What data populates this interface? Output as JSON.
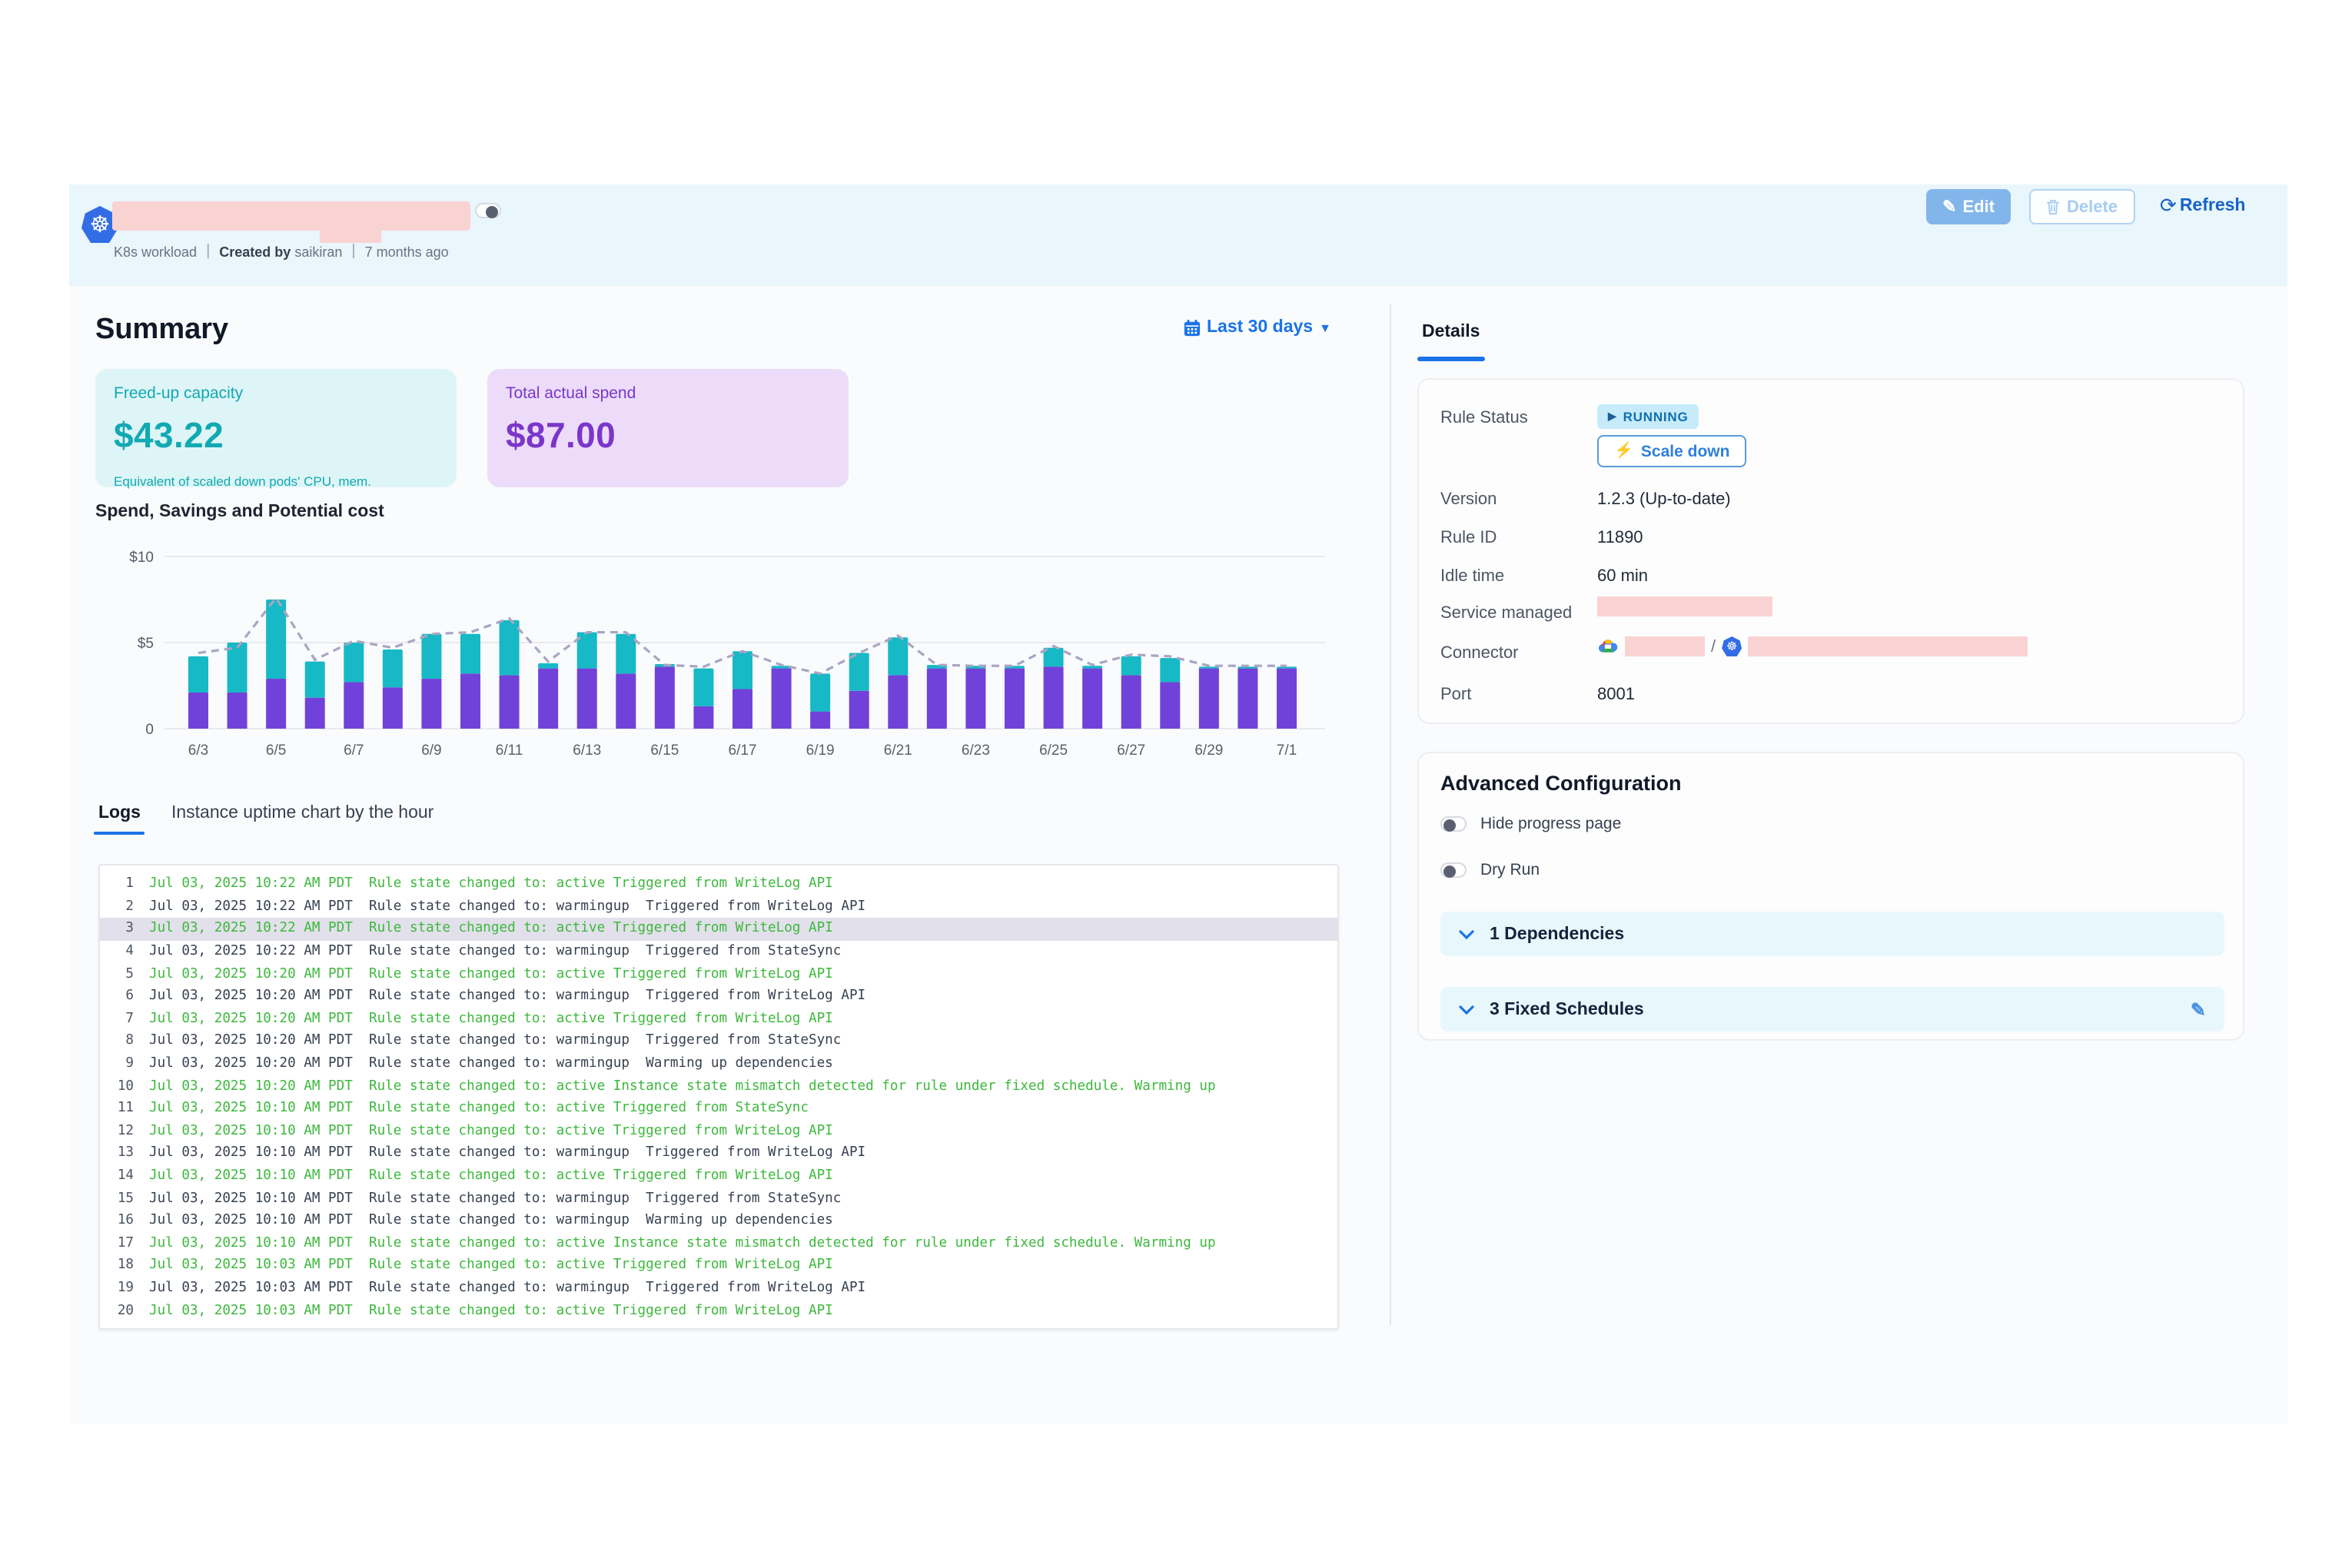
{
  "header": {
    "title_redacted": true,
    "type_label": "K8s workload",
    "created_by_label": "Created by",
    "created_by_value": "saikiran",
    "age": "7 months ago",
    "edit_label": "Edit",
    "delete_label": "Delete",
    "refresh_label": "Refresh",
    "workload_toggle_on": true
  },
  "summary": {
    "title": "Summary",
    "date_range": "Last 30 days",
    "cards": [
      {
        "label": "Freed-up capacity",
        "value": "$43.22",
        "caption": "Equivalent of scaled down pods' CPU, mem.",
        "accent": "#11a9b3",
        "bg": "#def5f7"
      },
      {
        "label": "Total actual spend",
        "value": "$87.00",
        "caption": "",
        "accent": "#7b36c9",
        "bg": "#ecdcfa"
      }
    ]
  },
  "chart_data": {
    "type": "bar",
    "stacked": true,
    "title": "Spend, Savings and Potential cost",
    "x": [
      "6/3",
      "6/4",
      "6/5",
      "6/6",
      "6/7",
      "6/8",
      "6/9",
      "6/10",
      "6/11",
      "6/12",
      "6/13",
      "6/14",
      "6/15",
      "6/16",
      "6/17",
      "6/18",
      "6/19",
      "6/20",
      "6/21",
      "6/22",
      "6/23",
      "6/24",
      "6/25",
      "6/26",
      "6/27",
      "6/28",
      "6/29",
      "6/30",
      "7/1"
    ],
    "x_tick_labels": [
      "6/3",
      "6/5",
      "6/7",
      "6/9",
      "6/11",
      "6/13",
      "6/15",
      "6/17",
      "6/19",
      "6/21",
      "6/23",
      "6/25",
      "6/27",
      "6/29",
      "7/1"
    ],
    "y_ticks": [
      "$10",
      "$5",
      "0"
    ],
    "ylim": [
      0,
      10
    ],
    "grid": true,
    "legend": "none",
    "series": [
      {
        "name": "Spend",
        "type": "bar",
        "color": "#7142d9",
        "values": [
          2.1,
          2.1,
          2.9,
          1.8,
          2.7,
          2.4,
          2.9,
          3.2,
          3.1,
          3.5,
          3.5,
          3.2,
          3.6,
          1.3,
          2.3,
          3.5,
          1.0,
          2.2,
          3.1,
          3.5,
          3.5,
          3.5,
          3.6,
          3.5,
          3.1,
          2.7,
          3.5,
          3.5,
          3.5
        ]
      },
      {
        "name": "Savings",
        "type": "bar",
        "color": "#16b9c5",
        "values": [
          2.1,
          2.9,
          4.6,
          2.1,
          2.3,
          2.2,
          2.6,
          2.3,
          3.2,
          0.3,
          2.1,
          2.3,
          0.15,
          2.2,
          2.2,
          0.15,
          2.2,
          2.2,
          2.2,
          0.2,
          0.15,
          0.15,
          1.1,
          0.15,
          1.1,
          1.4,
          0.1,
          0.1,
          0.1
        ]
      },
      {
        "name": "Potential cost",
        "type": "line",
        "style": "dashed",
        "color": "#aaa5c2",
        "values": [
          4.4,
          4.7,
          7.6,
          4.0,
          5.1,
          4.7,
          5.5,
          5.6,
          6.4,
          3.9,
          5.6,
          5.6,
          3.7,
          3.6,
          4.5,
          3.7,
          3.2,
          4.4,
          5.4,
          3.7,
          3.65,
          3.65,
          4.8,
          3.7,
          4.3,
          4.2,
          3.65,
          3.65,
          3.65
        ]
      }
    ]
  },
  "tabs": {
    "logs": "Logs",
    "uptime": "Instance uptime chart by the hour"
  },
  "logs": {
    "rows": [
      {
        "n": "1",
        "state": "active",
        "hl": false,
        "text": "Jul 03, 2025 10:22 AM PDT  Rule state changed to: active Triggered from WriteLog API"
      },
      {
        "n": "2",
        "state": "warm",
        "hl": false,
        "text": "Jul 03, 2025 10:22 AM PDT  Rule state changed to: warmingup  Triggered from WriteLog API"
      },
      {
        "n": "3",
        "state": "active",
        "hl": true,
        "text": "Jul 03, 2025 10:22 AM PDT  Rule state changed to: active Triggered from WriteLog API"
      },
      {
        "n": "4",
        "state": "warm",
        "hl": false,
        "text": "Jul 03, 2025 10:22 AM PDT  Rule state changed to: warmingup  Triggered from StateSync"
      },
      {
        "n": "5",
        "state": "active",
        "hl": false,
        "text": "Jul 03, 2025 10:20 AM PDT  Rule state changed to: active Triggered from WriteLog API"
      },
      {
        "n": "6",
        "state": "warm",
        "hl": false,
        "text": "Jul 03, 2025 10:20 AM PDT  Rule state changed to: warmingup  Triggered from WriteLog API"
      },
      {
        "n": "7",
        "state": "active",
        "hl": false,
        "text": "Jul 03, 2025 10:20 AM PDT  Rule state changed to: active Triggered from WriteLog API"
      },
      {
        "n": "8",
        "state": "warm",
        "hl": false,
        "text": "Jul 03, 2025 10:20 AM PDT  Rule state changed to: warmingup  Triggered from StateSync"
      },
      {
        "n": "9",
        "state": "warm",
        "hl": false,
        "text": "Jul 03, 2025 10:20 AM PDT  Rule state changed to: warmingup  Warming up dependencies"
      },
      {
        "n": "10",
        "state": "active",
        "hl": false,
        "text": "Jul 03, 2025 10:20 AM PDT  Rule state changed to: active Instance state mismatch detected for rule under fixed schedule. Warming up"
      },
      {
        "n": "11",
        "state": "active",
        "hl": false,
        "text": "Jul 03, 2025 10:10 AM PDT  Rule state changed to: active Triggered from StateSync"
      },
      {
        "n": "12",
        "state": "active",
        "hl": false,
        "text": "Jul 03, 2025 10:10 AM PDT  Rule state changed to: active Triggered from WriteLog API"
      },
      {
        "n": "13",
        "state": "warm",
        "hl": false,
        "text": "Jul 03, 2025 10:10 AM PDT  Rule state changed to: warmingup  Triggered from WriteLog API"
      },
      {
        "n": "14",
        "state": "active",
        "hl": false,
        "text": "Jul 03, 2025 10:10 AM PDT  Rule state changed to: active Triggered from WriteLog API"
      },
      {
        "n": "15",
        "state": "warm",
        "hl": false,
        "text": "Jul 03, 2025 10:10 AM PDT  Rule state changed to: warmingup  Triggered from StateSync"
      },
      {
        "n": "16",
        "state": "warm",
        "hl": false,
        "text": "Jul 03, 2025 10:10 AM PDT  Rule state changed to: warmingup  Warming up dependencies"
      },
      {
        "n": "17",
        "state": "active",
        "hl": false,
        "text": "Jul 03, 2025 10:10 AM PDT  Rule state changed to: active Instance state mismatch detected for rule under fixed schedule. Warming up"
      },
      {
        "n": "18",
        "state": "active",
        "hl": false,
        "text": "Jul 03, 2025 10:03 AM PDT  Rule state changed to: active Triggered from WriteLog API"
      },
      {
        "n": "19",
        "state": "warm",
        "hl": false,
        "text": "Jul 03, 2025 10:03 AM PDT  Rule state changed to: warmingup  Triggered from WriteLog API"
      },
      {
        "n": "20",
        "state": "active",
        "hl": false,
        "text": "Jul 03, 2025 10:03 AM PDT  Rule state changed to: active Triggered from WriteLog API"
      }
    ]
  },
  "details": {
    "tab": "Details",
    "rule_status_label": "Rule Status",
    "running_badge": "RUNNING",
    "scale_down_button": "Scale down",
    "version_label": "Version",
    "version_value": "1.2.3 (Up-to-date)",
    "rule_id_label": "Rule ID",
    "rule_id_value": "11890",
    "idle_time_label": "Idle time",
    "idle_time_value": "60 min",
    "service_managed_label": "Service managed",
    "service_managed_redacted": true,
    "connector_label": "Connector",
    "connector_separator": "/",
    "connector_redacted": true,
    "port_label": "Port",
    "port_value": "8001"
  },
  "advanced": {
    "title": "Advanced Configuration",
    "toggles": [
      {
        "label": "Hide progress page",
        "on": false
      },
      {
        "label": "Dry Run",
        "on": false
      }
    ],
    "dependencies_label": "1 Dependencies",
    "schedules_label": "3 Fixed Schedules"
  },
  "colors": {
    "accent_blue": "#1a73e8",
    "log_green": "#3db83d",
    "bar_purple": "#7142d9",
    "bar_teal": "#16b9c5",
    "dash_line": "#aaa5c2",
    "redaction_pink": "#f9d3d2",
    "header_band": "#e9f6fb"
  }
}
